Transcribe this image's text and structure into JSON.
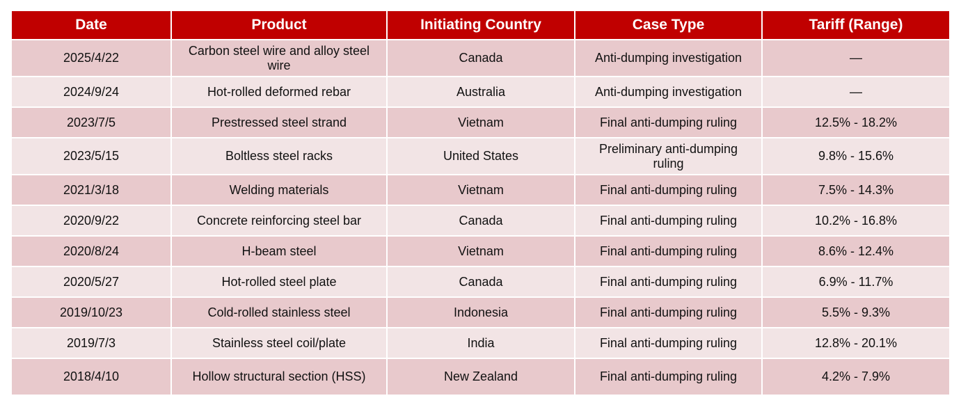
{
  "table": {
    "headers": [
      "Date",
      "Product",
      "Initiating Country",
      "Case Type",
      "Tariff (Range)"
    ],
    "rows": [
      [
        "2025/4/22",
        "Carbon steel wire and alloy steel wire",
        "Canada",
        "Anti-dumping investigation",
        "—"
      ],
      [
        "2024/9/24",
        "Hot-rolled deformed rebar",
        "Australia",
        "Anti-dumping investigation",
        "—"
      ],
      [
        "2023/7/5",
        "Prestressed steel strand",
        "Vietnam",
        "Final anti-dumping ruling",
        "12.5% - 18.2%"
      ],
      [
        "2023/5/15",
        "Boltless steel racks",
        "United States",
        "Preliminary anti-dumping ruling",
        "9.8% - 15.6%"
      ],
      [
        "2021/3/18",
        "Welding materials",
        "Vietnam",
        "Final anti-dumping ruling",
        "7.5% - 14.3%"
      ],
      [
        "2020/9/22",
        "Concrete reinforcing steel bar",
        "Canada",
        "Final anti-dumping ruling",
        "10.2% - 16.8%"
      ],
      [
        "2020/8/24",
        "H-beam steel",
        "Vietnam",
        "Final anti-dumping ruling",
        "8.6% - 12.4%"
      ],
      [
        "2020/5/27",
        "Hot-rolled steel plate",
        "Canada",
        "Final anti-dumping ruling",
        "6.9% - 11.7%"
      ],
      [
        "2019/10/23",
        "Cold-rolled stainless steel",
        "Indonesia",
        "Final anti-dumping ruling",
        "5.5% - 9.3%"
      ],
      [
        "2019/7/3",
        "Stainless steel coil/plate",
        "India",
        "Final anti-dumping ruling",
        "12.8% - 20.1%"
      ],
      [
        "2018/4/10",
        "Hollow structural section (HSS)",
        "New Zealand",
        "Final anti-dumping ruling",
        "4.2% - 7.9%"
      ]
    ]
  }
}
